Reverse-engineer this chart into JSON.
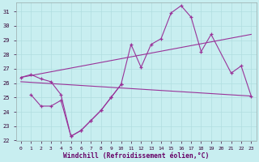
{
  "bg_color": "#c8eef0",
  "grid_color": "#b0dde0",
  "line_color": "#993399",
  "xlabel": "Windchill (Refroidissement éolien,°C)",
  "ylim": [
    22,
    31.6
  ],
  "xlim": [
    -0.5,
    23.5
  ],
  "yticks": [
    22,
    23,
    24,
    25,
    26,
    27,
    28,
    29,
    30,
    31
  ],
  "xticks": [
    0,
    1,
    2,
    3,
    4,
    5,
    6,
    7,
    8,
    9,
    10,
    11,
    12,
    13,
    14,
    15,
    16,
    17,
    18,
    19,
    20,
    21,
    22,
    23
  ],
  "lines": [
    {
      "x": [
        0,
        1,
        2,
        3,
        4,
        5,
        6,
        7,
        8,
        9,
        10,
        11,
        12,
        13,
        14,
        15,
        16,
        17,
        18,
        19,
        21,
        22,
        23
      ],
      "y": [
        26.4,
        26.6,
        26.3,
        26.1,
        25.2,
        22.3,
        22.7,
        23.4,
        24.1,
        25.0,
        25.9,
        28.7,
        27.1,
        28.7,
        29.1,
        30.9,
        31.4,
        30.6,
        28.2,
        29.4,
        26.7,
        27.2,
        25.1
      ],
      "marker": true
    },
    {
      "x": [
        1,
        2,
        3,
        4,
        5,
        6,
        7,
        8,
        9,
        10
      ],
      "y": [
        25.2,
        24.4,
        24.4,
        24.8,
        22.3,
        22.7,
        23.4,
        24.1,
        25.0,
        25.9
      ],
      "marker": true
    },
    {
      "x": [
        0,
        23
      ],
      "y": [
        26.4,
        29.4
      ],
      "marker": false
    },
    {
      "x": [
        0,
        23
      ],
      "y": [
        26.1,
        25.1
      ],
      "marker": false
    }
  ]
}
